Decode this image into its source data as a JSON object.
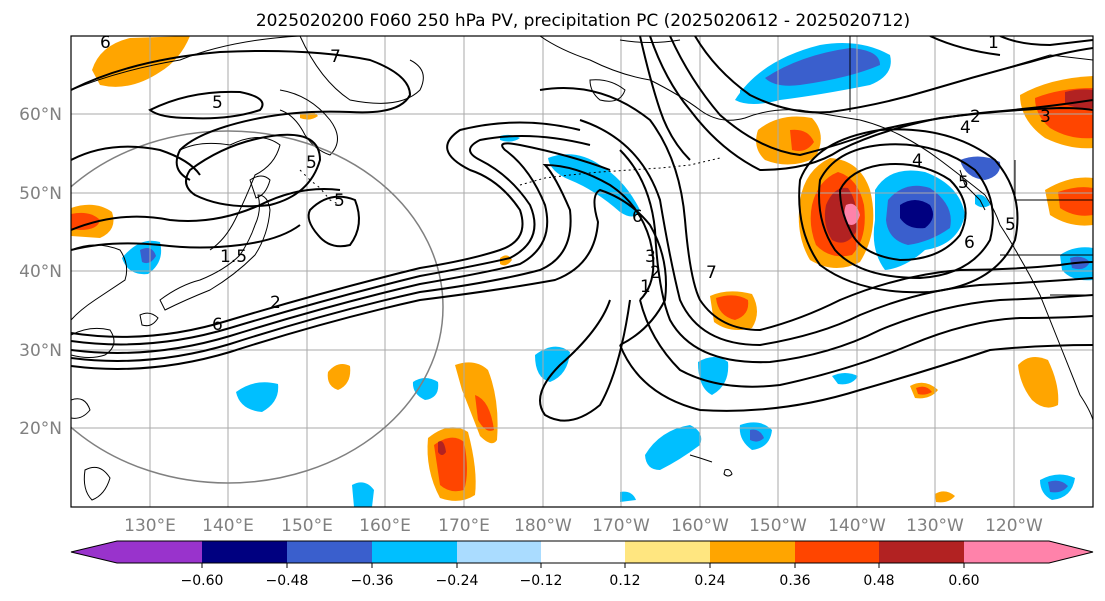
{
  "title": "2025020200 F060 250 hPa PV, precipitation PC (2025020612 - 2025020712)",
  "map": {
    "lat_ticks": [
      "60°N",
      "50°N",
      "40°N",
      "30°N",
      "20°N"
    ],
    "lon_ticks": [
      "130°E",
      "140°E",
      "150°E",
      "160°E",
      "170°E",
      "180°W",
      "170°W",
      "160°W",
      "150°W",
      "140°W",
      "130°W",
      "120°W"
    ],
    "contour_labels": [
      "7",
      "5",
      "5",
      "5",
      "1.5",
      "2",
      "6",
      "6",
      "3",
      "2",
      "1",
      "7",
      "1",
      "2",
      "3",
      "4",
      "4",
      "6",
      "5",
      "5",
      "6"
    ],
    "colors": {
      "purple": "#9933cc",
      "navy": "#000080",
      "blue": "#3a5fcd",
      "sky": "#00bfff",
      "lightblue": "#aadcff",
      "yellow": "#ffe680",
      "orange": "#ffa500",
      "redorange": "#ff4500",
      "darkred": "#b22222",
      "pink": "#ff82aa"
    }
  },
  "colorbar": {
    "tick_labels": [
      "−0.60",
      "−0.48",
      "−0.36",
      "−0.24",
      "−0.12",
      "0.12",
      "0.24",
      "0.36",
      "0.48",
      "0.60"
    ],
    "colors": [
      "#9933cc",
      "#000080",
      "#3a5fcd",
      "#00bfff",
      "#aadcff",
      "#ffffff",
      "#ffe680",
      "#ffa500",
      "#ff4500",
      "#b22222",
      "#ff82aa"
    ]
  }
}
